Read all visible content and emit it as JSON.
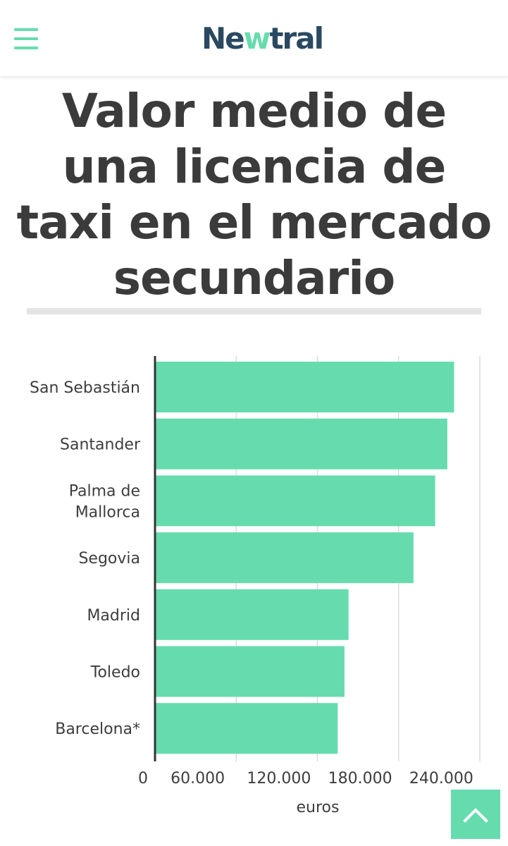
{
  "header": {
    "logo_text_start": "Ne",
    "logo_text_mid": "w",
    "logo_text_end": "tral",
    "menu_icon": "hamburger-icon",
    "accent_color": "#66dcae",
    "brand_color": "#2a4961"
  },
  "page_title": "Valor medio de una licencia de taxi en el mercado secundario",
  "chart_data": {
    "type": "bar",
    "orientation": "horizontal",
    "title": "Valor medio de una licencia de taxi en el mercado secundario",
    "categories": [
      "San Sebastián",
      "Santander",
      "Palma de Mallorca",
      "Segovia",
      "Madrid",
      "Toledo",
      "Barcelona*"
    ],
    "category_lines": [
      [
        "San Sebastián"
      ],
      [
        "Santander"
      ],
      [
        "Palma de",
        "Mallorca"
      ],
      [
        "Segovia"
      ],
      [
        "Madrid"
      ],
      [
        "Toledo"
      ],
      [
        "Barcelona*"
      ]
    ],
    "values": [
      221000,
      216000,
      207000,
      191000,
      143000,
      140000,
      135000
    ],
    "xlabel": "euros",
    "ylabel": "",
    "xlim": [
      0,
      240000
    ],
    "ticks": [
      0,
      60000,
      120000,
      180000,
      240000
    ],
    "tick_labels": [
      "0",
      "60.000",
      "120.000",
      "180.000",
      "240.000"
    ],
    "grid": true,
    "bar_color": "#66dcae"
  },
  "scroll_top": {
    "icon": "chevron-up-icon"
  }
}
